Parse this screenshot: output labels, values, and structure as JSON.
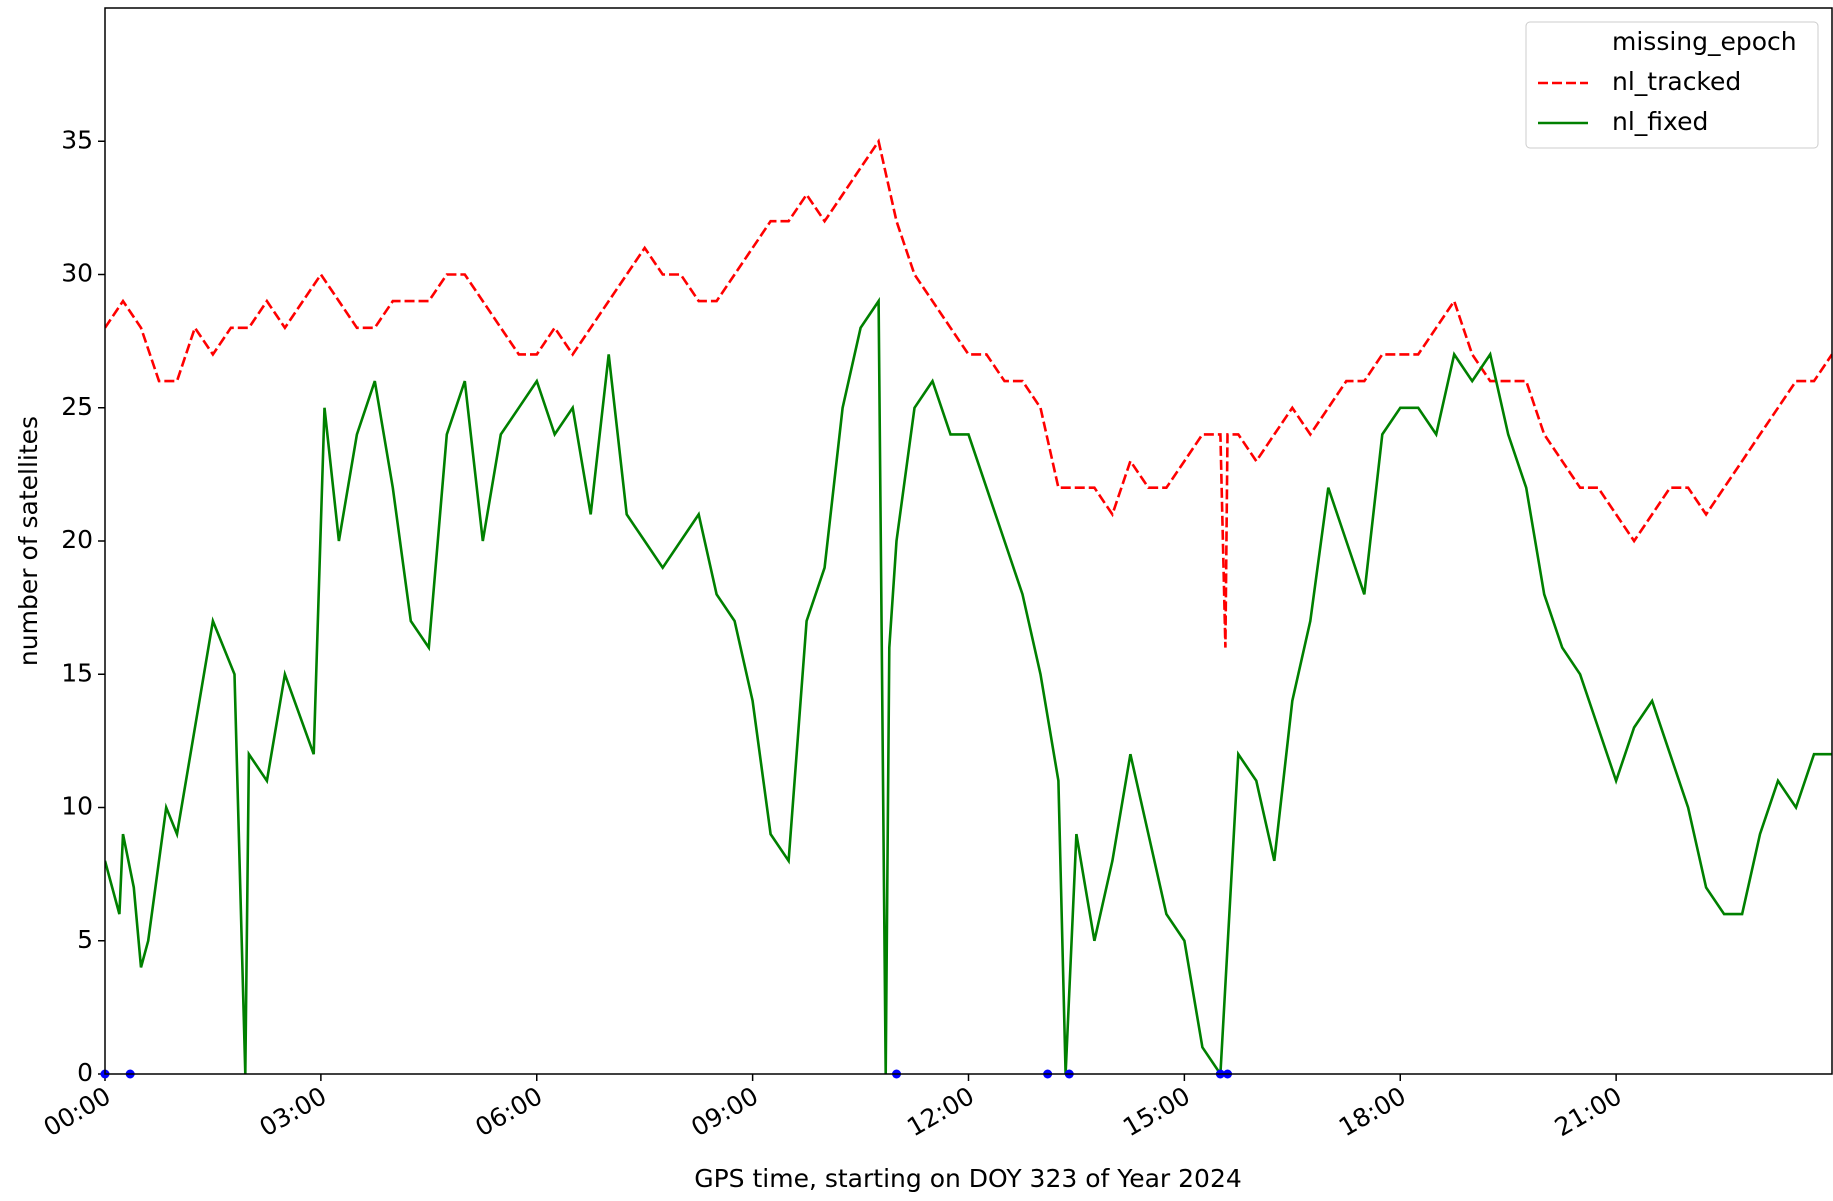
{
  "chart_data": {
    "type": "line",
    "xlabel": "GPS time, starting on DOY 323 of Year 2024",
    "ylabel": "number of satellites",
    "xlim": [
      0,
      24
    ],
    "ylim": [
      0,
      40
    ],
    "xticks": [
      {
        "value": 0,
        "label": "00:00"
      },
      {
        "value": 3,
        "label": "03:00"
      },
      {
        "value": 6,
        "label": "06:00"
      },
      {
        "value": 9,
        "label": "09:00"
      },
      {
        "value": 12,
        "label": "12:00"
      },
      {
        "value": 15,
        "label": "15:00"
      },
      {
        "value": 18,
        "label": "18:00"
      },
      {
        "value": 21,
        "label": "21:00"
      }
    ],
    "yticks": [
      0,
      5,
      10,
      15,
      20,
      25,
      30,
      35
    ],
    "legend": "upper right",
    "series": [
      {
        "name": "missing_epoch",
        "color": "#0000ff",
        "style": "points",
        "x": [
          0.0,
          0.35,
          11.0,
          13.1,
          13.4,
          15.5,
          15.6
        ],
        "values": [
          0,
          0,
          0,
          0,
          0,
          0,
          0
        ]
      },
      {
        "name": "nl_tracked",
        "color": "#ff0000",
        "style": "dashed",
        "x": [
          0,
          0.25,
          0.5,
          0.75,
          1.0,
          1.25,
          1.5,
          1.75,
          2.0,
          2.25,
          2.5,
          2.75,
          3.0,
          3.25,
          3.5,
          3.75,
          4.0,
          4.25,
          4.5,
          4.75,
          5.0,
          5.25,
          5.5,
          5.75,
          6.0,
          6.25,
          6.5,
          6.75,
          7.0,
          7.25,
          7.5,
          7.75,
          8.0,
          8.25,
          8.5,
          8.75,
          9.0,
          9.25,
          9.5,
          9.75,
          10.0,
          10.25,
          10.5,
          10.75,
          11.0,
          11.25,
          11.5,
          11.75,
          12.0,
          12.25,
          12.5,
          12.75,
          13.0,
          13.25,
          13.5,
          13.75,
          14.0,
          14.25,
          14.5,
          14.75,
          15.0,
          15.25,
          15.5,
          15.57,
          15.6,
          15.75,
          16.0,
          16.25,
          16.5,
          16.75,
          17.0,
          17.25,
          17.5,
          17.75,
          18.0,
          18.25,
          18.5,
          18.75,
          19.0,
          19.25,
          19.5,
          19.75,
          20.0,
          20.25,
          20.5,
          20.75,
          21.0,
          21.25,
          21.5,
          21.75,
          22.0,
          22.25,
          22.5,
          22.75,
          23.0,
          23.25,
          23.5,
          23.75,
          24.0
        ],
        "values": [
          28,
          29,
          28,
          26,
          26,
          28,
          27,
          28,
          28,
          29,
          28,
          29,
          30,
          29,
          28,
          28,
          29,
          29,
          29,
          30,
          30,
          29,
          28,
          27,
          27,
          28,
          27,
          28,
          29,
          30,
          31,
          30,
          30,
          29,
          29,
          30,
          31,
          32,
          32,
          33,
          32,
          33,
          34,
          35,
          32,
          30,
          29,
          28,
          27,
          27,
          26,
          26,
          25,
          22,
          22,
          22,
          21,
          23,
          22,
          22,
          23,
          24,
          24,
          16,
          24,
          24,
          23,
          24,
          25,
          24,
          25,
          26,
          26,
          27,
          27,
          27,
          28,
          29,
          27,
          26,
          26,
          26,
          24,
          23,
          22,
          22,
          21,
          20,
          21,
          22,
          22,
          21,
          22,
          23,
          24,
          25,
          26,
          26,
          27
        ]
      },
      {
        "name": "nl_fixed",
        "color": "#008000",
        "style": "solid",
        "x": [
          0,
          0.1,
          0.2,
          0.25,
          0.4,
          0.5,
          0.6,
          0.85,
          1.0,
          1.5,
          1.8,
          1.95,
          2.0,
          2.25,
          2.5,
          2.9,
          3.05,
          3.25,
          3.5,
          3.75,
          4.0,
          4.25,
          4.5,
          4.75,
          5.0,
          5.25,
          5.5,
          5.75,
          6.0,
          6.25,
          6.5,
          6.75,
          7.0,
          7.25,
          7.5,
          7.75,
          8.0,
          8.25,
          8.5,
          8.75,
          9.0,
          9.25,
          9.5,
          9.75,
          10.0,
          10.25,
          10.5,
          10.75,
          10.85,
          10.9,
          11.0,
          11.25,
          11.5,
          11.75,
          12.0,
          12.25,
          12.5,
          12.75,
          13.0,
          13.25,
          13.35,
          13.5,
          13.75,
          14.0,
          14.25,
          14.5,
          14.75,
          15.0,
          15.25,
          15.5,
          15.75,
          16.0,
          16.25,
          16.5,
          16.75,
          17.0,
          17.25,
          17.5,
          17.75,
          18.0,
          18.25,
          18.5,
          18.75,
          19.0,
          19.25,
          19.5,
          19.75,
          20.0,
          20.25,
          20.5,
          20.75,
          21.0,
          21.25,
          21.5,
          21.75,
          22.0,
          22.25,
          22.5,
          22.75,
          23.0,
          23.25,
          23.5,
          23.75,
          24.0
        ],
        "values": [
          8,
          7,
          6,
          9,
          7,
          4,
          5,
          10,
          9,
          17,
          15,
          0,
          12,
          11,
          15,
          12,
          25,
          20,
          24,
          26,
          22,
          17,
          16,
          24,
          26,
          20,
          24,
          25,
          26,
          24,
          25,
          21,
          27,
          21,
          20,
          19,
          20,
          21,
          18,
          17,
          14,
          9,
          8,
          17,
          19,
          25,
          28,
          29,
          0,
          16,
          20,
          25,
          26,
          24,
          24,
          22,
          20,
          18,
          15,
          11,
          0,
          9,
          5,
          8,
          12,
          9,
          6,
          5,
          1,
          0,
          12,
          11,
          8,
          14,
          17,
          22,
          20,
          18,
          24,
          25,
          25,
          24,
          27,
          26,
          27,
          24,
          22,
          18,
          16,
          15,
          13,
          11,
          13,
          14,
          12,
          10,
          7,
          6,
          6,
          9,
          11,
          10,
          12,
          12
        ]
      }
    ]
  }
}
